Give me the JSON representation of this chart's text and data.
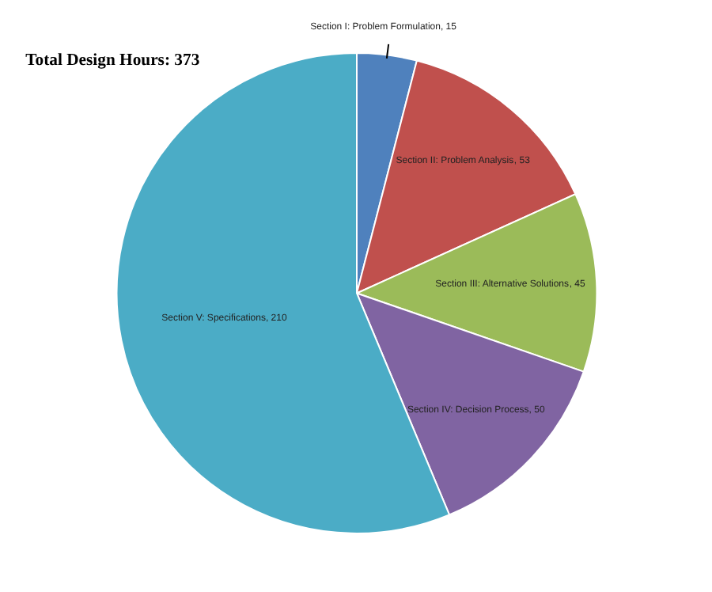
{
  "chart_data": {
    "type": "pie",
    "title": "Total Design Hours: 373",
    "categories": [
      "Section I: Problem Formulation",
      "Section II: Problem Analysis",
      "Section III: Alternative Solutions",
      "Section IV: Decision Process",
      "Section V: Specifications"
    ],
    "values": [
      15,
      53,
      45,
      50,
      210
    ],
    "value_labels": [
      ", 15",
      ", 53",
      ", 45",
      ", 50",
      ", 210"
    ],
    "colors": [
      "#4f81bd",
      "#c0504d",
      "#9bbb59",
      "#8064a2",
      "#4bacc6"
    ]
  }
}
